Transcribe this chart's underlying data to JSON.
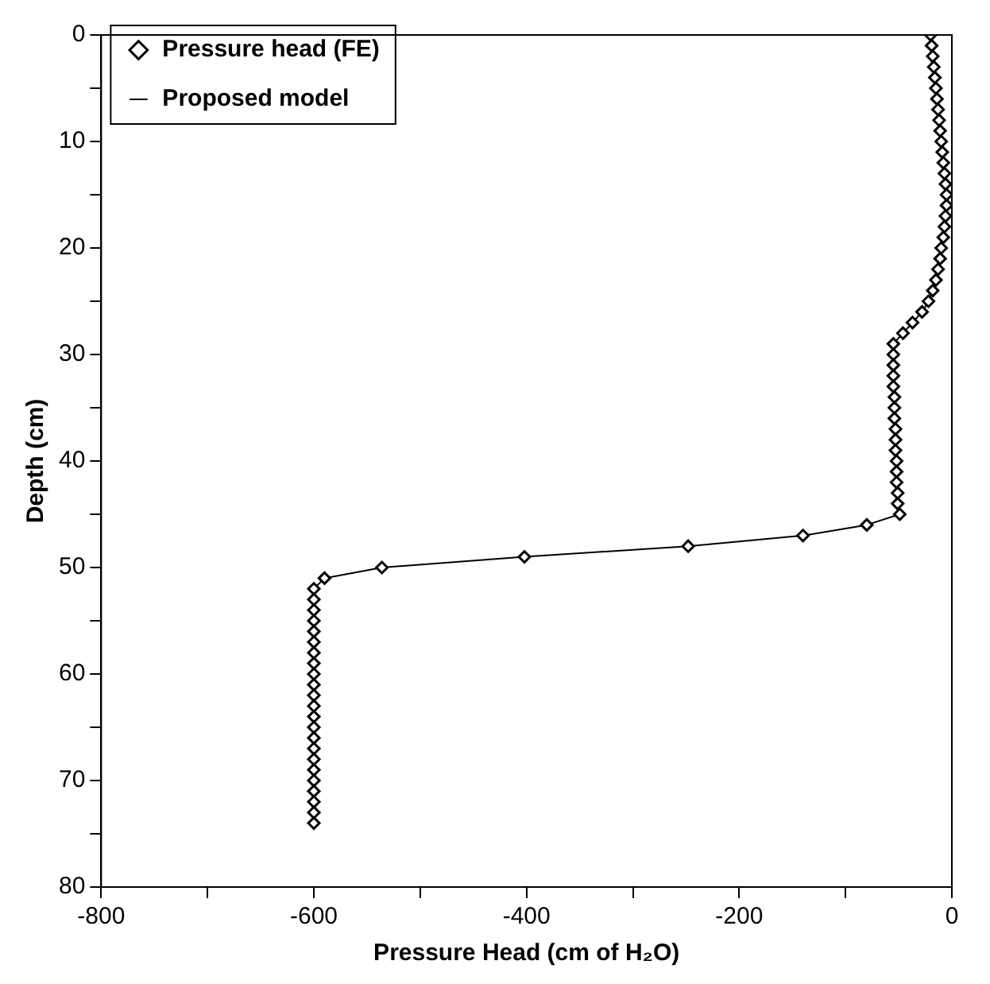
{
  "chart_data": {
    "type": "line",
    "orientation": "horizontal",
    "xlabel": "Pressure Head (cm of H₂O)",
    "ylabel": "Depth (cm)",
    "xlim": [
      -800,
      0
    ],
    "xticks": [
      -800,
      {
        "value": -700,
        "label": null
      },
      -600,
      {
        "value": -500,
        "label": null
      },
      -400,
      {
        "value": -300,
        "label": null
      },
      -200,
      {
        "value": -100,
        "label": null
      },
      0
    ],
    "ylim": [
      80,
      0
    ],
    "yticks": [
      0,
      {
        "value": 5,
        "label": null
      },
      10,
      {
        "value": 15,
        "label": null
      },
      20,
      {
        "value": 25,
        "label": null
      },
      30,
      {
        "value": 35,
        "label": null
      },
      40,
      {
        "value": 45,
        "label": null
      },
      50,
      {
        "value": 55,
        "label": null
      },
      60,
      {
        "value": 65,
        "label": null
      },
      70,
      {
        "value": 75,
        "label": null
      },
      80
    ],
    "grid": false,
    "legend": "top left",
    "series": [
      {
        "name": "Pressure head (FE)",
        "type": "scatter",
        "marker": "diamond",
        "color": "#000000",
        "x": [
          0,
          1,
          2,
          3,
          4,
          5,
          6,
          7,
          8,
          9,
          10,
          11,
          12,
          13,
          14,
          15,
          16,
          17,
          18,
          19,
          20,
          21,
          22,
          23,
          24,
          25,
          26,
          27,
          28,
          29,
          30,
          31,
          32,
          33,
          34,
          35,
          36,
          37,
          38,
          39,
          40,
          41,
          42,
          43,
          44,
          45,
          46,
          47,
          48,
          49,
          50,
          51,
          52,
          53,
          54,
          55,
          56,
          57,
          58,
          59,
          60,
          61,
          62,
          63,
          64,
          65,
          66,
          67,
          68,
          69,
          70,
          71,
          72,
          73,
          74
        ],
        "values": [
          -20,
          -19,
          -18,
          -17,
          -16,
          -15,
          -14,
          -13,
          -12,
          -11,
          -10,
          -9,
          -8,
          -7,
          -6,
          -5,
          -5,
          -6,
          -7,
          -8,
          -10,
          -11,
          -13,
          -15,
          -18,
          -22,
          -28,
          -37,
          -46,
          -55,
          -55,
          -55,
          -55,
          -55,
          -54,
          -54,
          -54,
          -53,
          -53,
          -53,
          -52,
          -52,
          -52,
          -51,
          -51,
          -49,
          -80,
          -140,
          -248,
          -402,
          -536,
          -590,
          -600,
          -600,
          -600,
          -600,
          -600,
          -600,
          -600,
          -600,
          -600,
          -600,
          -600,
          -600,
          -600,
          -600,
          -600,
          -600,
          -600,
          -600,
          -600,
          -600,
          -600,
          -600,
          -600
        ]
      },
      {
        "name": "Proposed model",
        "type": "line",
        "line_style": "solid",
        "color": "#000000",
        "x": [
          0,
          1,
          2,
          3,
          4,
          5,
          6,
          7,
          8,
          9,
          10,
          11,
          12,
          13,
          14,
          15,
          16,
          17,
          18,
          19,
          20,
          21,
          22,
          23,
          24,
          25,
          26,
          27,
          28,
          29,
          30,
          31,
          32,
          33,
          34,
          35,
          36,
          37,
          38,
          39,
          40,
          41,
          42,
          43,
          44,
          45,
          46,
          47,
          48,
          49,
          50,
          51,
          52,
          53,
          54,
          55,
          56,
          57,
          58,
          59,
          60,
          61,
          62,
          63,
          64,
          65,
          66,
          67,
          68,
          69,
          70,
          71,
          72,
          73,
          74
        ],
        "values": [
          -20,
          -19,
          -18,
          -17,
          -16,
          -15,
          -14,
          -13,
          -12,
          -11,
          -10,
          -9,
          -8,
          -7,
          -6,
          -5,
          -5,
          -6,
          -7,
          -8,
          -10,
          -11,
          -13,
          -15,
          -18,
          -22,
          -28,
          -37,
          -46,
          -55,
          -55,
          -55,
          -55,
          -55,
          -54,
          -54,
          -54,
          -53,
          -53,
          -53,
          -52,
          -52,
          -52,
          -51,
          -51,
          -49,
          -80,
          -140,
          -248,
          -402,
          -536,
          -590,
          -600,
          -600,
          -600,
          -600,
          -600,
          -600,
          -600,
          -600,
          -600,
          -600,
          -600,
          -600,
          -600,
          -600,
          -600,
          -600,
          -600,
          -600,
          -600,
          -600,
          -600,
          -600,
          -600
        ]
      }
    ]
  }
}
